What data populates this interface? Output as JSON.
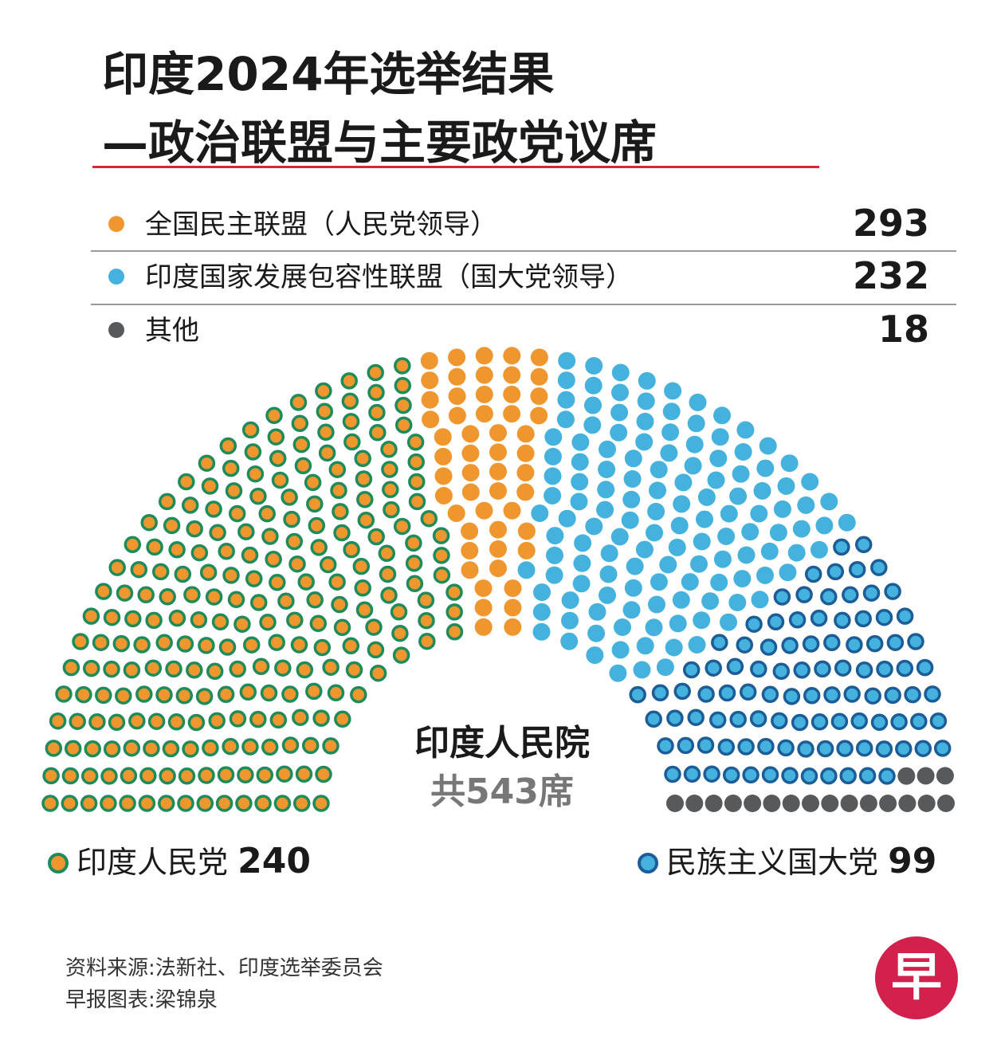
{
  "title": {
    "line1": "印度2024年选举结果",
    "line2": "—政治联盟与主要政党议席"
  },
  "legend": [
    {
      "label": "全国民主联盟（人民党领导）",
      "value": "293",
      "color": "#f0962e"
    },
    {
      "label": "印度国家发展包容性联盟（国大党领导）",
      "value": "232",
      "color": "#45b2dd"
    },
    {
      "label": "其他",
      "value": "18",
      "color": "#58595b"
    }
  ],
  "center": {
    "title": "印度人民院",
    "subtitle": "共543席"
  },
  "parties": {
    "bjp": {
      "name": "印度人民党",
      "seats": "240",
      "fill": "#f0962e",
      "ring": "#1e8c5a"
    },
    "inc": {
      "name": "民族主义国大党",
      "seats": "99",
      "fill": "#45b2dd",
      "ring": "#1c5d97"
    }
  },
  "source": {
    "line1": "资料来源:法新社、印度选举委员会",
    "line2": "早报图表:梁锦泉"
  },
  "logo": {
    "char": "早"
  },
  "chart_data": {
    "type": "hemicycle",
    "title": "印度人民院",
    "total_seats": 543,
    "series": [
      {
        "name": "印度人民党",
        "group": "全国民主联盟（人民党领导）",
        "seats": 240,
        "fill": "#f0962e",
        "ring": "#1e8c5a"
      },
      {
        "name": "全国民主联盟 其他",
        "group": "全国民主联盟（人民党领导）",
        "seats": 53,
        "fill": "#f0962e",
        "ring": ""
      },
      {
        "name": "印度国家发展包容性联盟 其他",
        "group": "印度国家发展包容性联盟（国大党领导）",
        "seats": 133,
        "fill": "#45b2dd",
        "ring": ""
      },
      {
        "name": "民族主义国大党",
        "group": "印度国家发展包容性联盟（国大党领导）",
        "seats": 99,
        "fill": "#45b2dd",
        "ring": "#1c5d97"
      },
      {
        "name": "其他",
        "group": "其他",
        "seats": 18,
        "fill": "#58595b",
        "ring": ""
      }
    ]
  }
}
